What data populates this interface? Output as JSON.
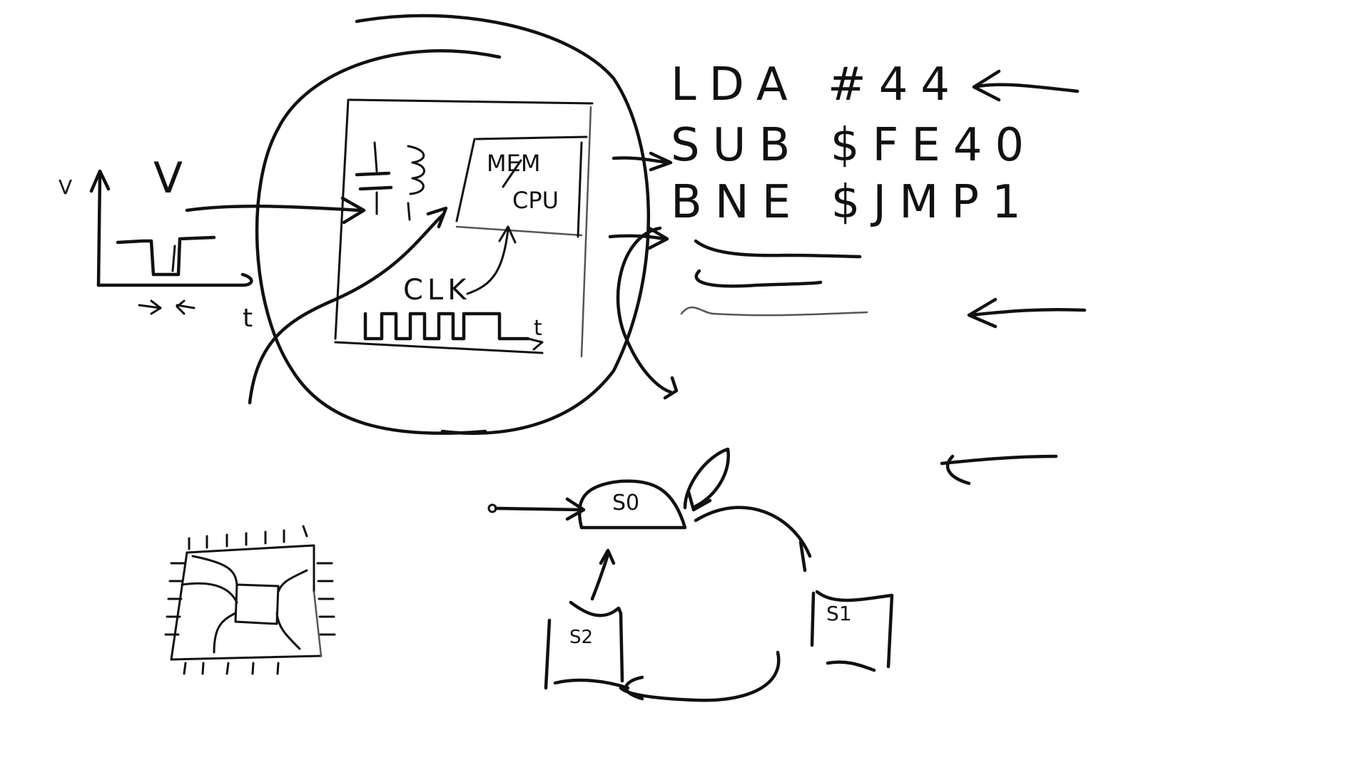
{
  "code_lines": [
    "LDA #44",
    "SUB $FE40",
    "BNE $JMP1"
  ],
  "box": {
    "mem_label": "MEM",
    "cpu_label": "CPU",
    "clk_label": "CLK",
    "t_label": "t"
  },
  "signal_plot": {
    "axis_v": "V",
    "axis_v_big": "V",
    "axis_t": "t"
  },
  "states": [
    "S0",
    "S1",
    "S2"
  ],
  "colors": {
    "ink": "#111111",
    "paper": "#ffffff"
  }
}
